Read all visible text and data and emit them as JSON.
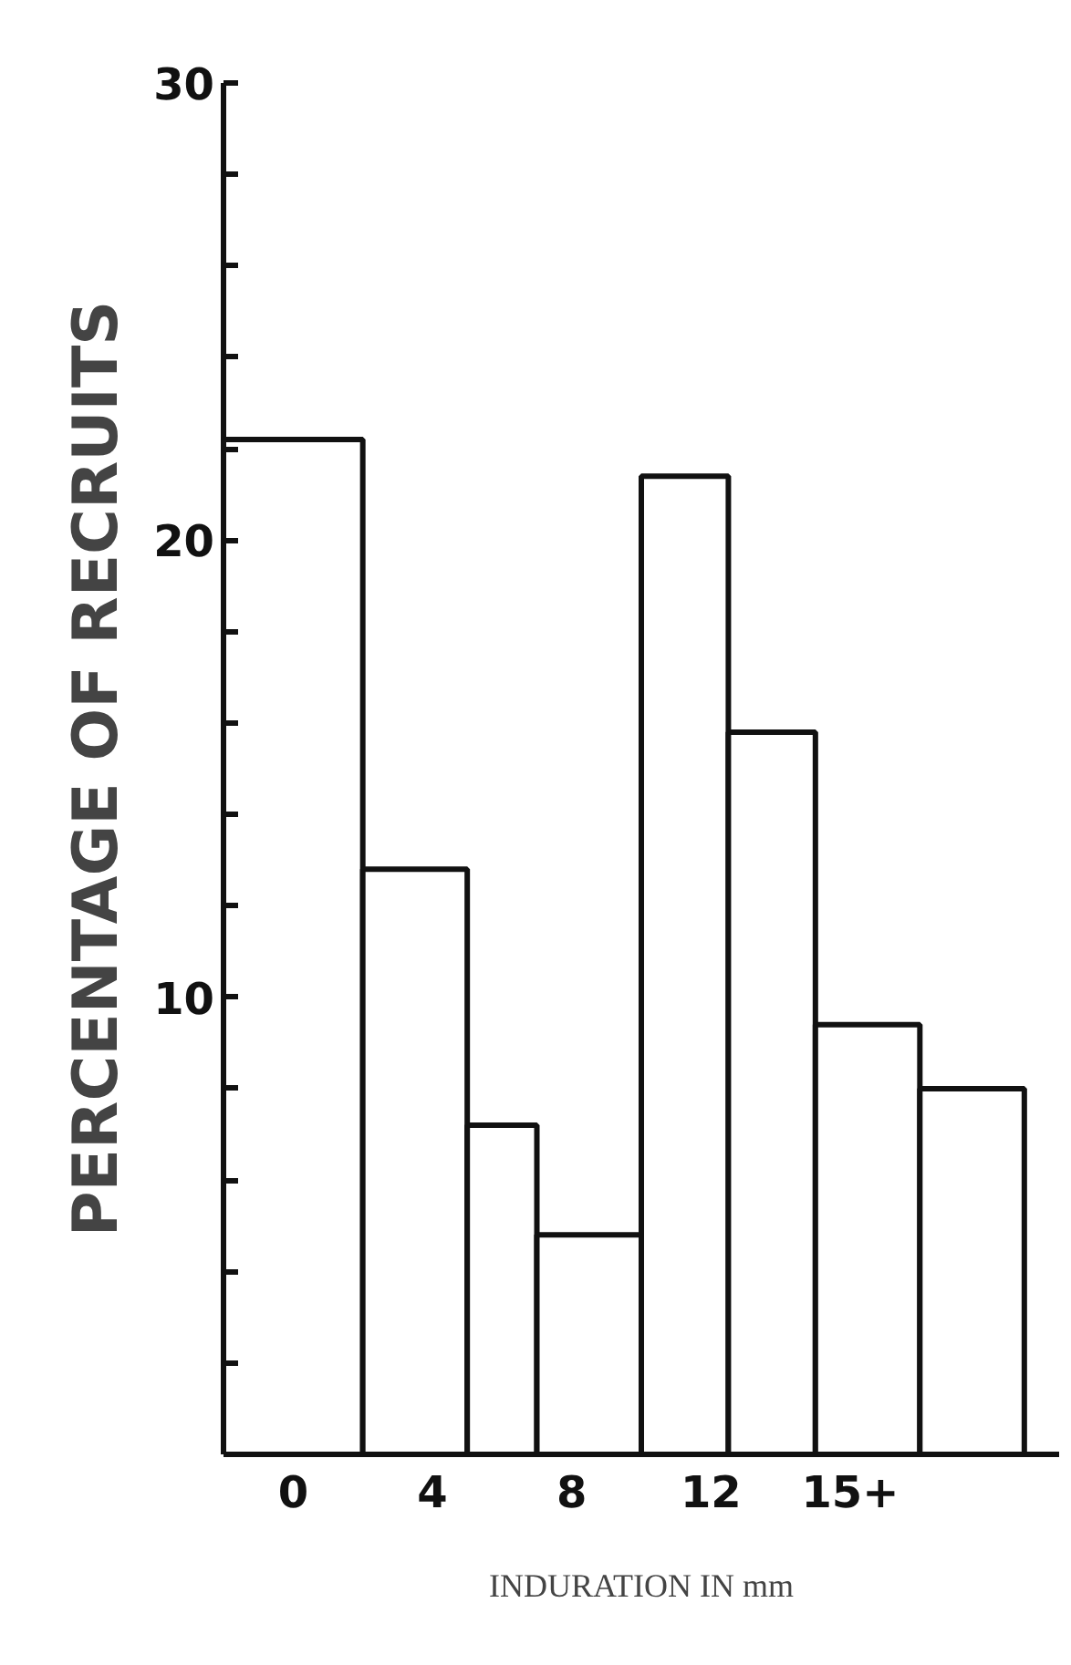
{
  "chart_data": {
    "type": "histogram",
    "xlabel": "INDURATION IN mm",
    "ylabel": "PERCENTAGE OF RECRUITS",
    "bins": [
      -2,
      2,
      5,
      7,
      10,
      12.5,
      15,
      18,
      21
    ],
    "values": [
      22.2,
      12.8,
      7.2,
      4.8,
      21.4,
      15.8,
      9.4,
      8.0
    ],
    "color": "#ffffff",
    "xlim": [
      -2,
      22
    ],
    "xticks": [
      0,
      4,
      8,
      12,
      {
        "value": 16,
        "label": "15+"
      }
    ],
    "ylim": [
      0,
      30
    ],
    "yticks": [
      {
        "value": 0,
        "label": null
      },
      {
        "value": 2,
        "label": null
      },
      {
        "value": 4,
        "label": null
      },
      {
        "value": 6,
        "label": null
      },
      {
        "value": 8,
        "label": null
      },
      10,
      {
        "value": 12,
        "label": null
      },
      {
        "value": 14,
        "label": null
      },
      {
        "value": 16,
        "label": null
      },
      {
        "value": 18,
        "label": null
      },
      20,
      {
        "value": 22,
        "label": null
      },
      {
        "value": 24,
        "label": null
      },
      {
        "value": 26,
        "label": null
      },
      {
        "value": 28,
        "label": null
      },
      30
    ],
    "grid": false
  }
}
